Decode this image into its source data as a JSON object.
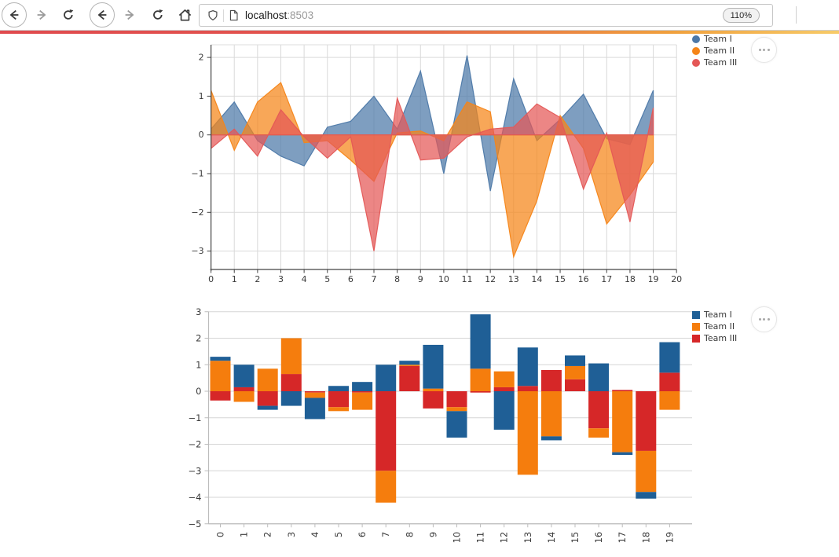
{
  "browser": {
    "back_label": "back",
    "forward_label": "forward",
    "reload_label": "reload",
    "home_label": "home",
    "url": "localhost:8503",
    "url_host": "localhost",
    "url_port": ":8503",
    "zoom_level": "110%"
  },
  "decoration_gradient": [
    "#e04a4e",
    "#e2544d",
    "#f0a03d",
    "#f7cb69"
  ],
  "chart_data": [
    {
      "type": "area",
      "title": "",
      "xlabel": "",
      "ylabel": "",
      "x": [
        0,
        1,
        2,
        3,
        4,
        5,
        6,
        7,
        8,
        9,
        10,
        11,
        12,
        13,
        14,
        15,
        16,
        17,
        18,
        19
      ],
      "series": [
        {
          "name": "Team I",
          "color": "#4c78a8",
          "values": [
            0.15,
            0.85,
            -0.15,
            -0.55,
            -0.8,
            0.2,
            0.35,
            1.0,
            0.15,
            1.65,
            -1.0,
            2.05,
            -1.45,
            1.45,
            -0.15,
            0.4,
            1.05,
            -0.1,
            -0.25,
            1.15
          ]
        },
        {
          "name": "Team II",
          "color": "#f58518",
          "values": [
            1.15,
            -0.4,
            0.85,
            1.35,
            -0.2,
            -0.15,
            -0.65,
            -1.2,
            0.05,
            0.1,
            -0.15,
            0.85,
            0.6,
            -3.15,
            -1.7,
            0.5,
            -0.35,
            -2.3,
            -1.55,
            -0.7
          ]
        },
        {
          "name": "Team III",
          "color": "#e45756",
          "values": [
            -0.35,
            0.15,
            -0.55,
            0.65,
            -0.05,
            -0.6,
            -0.05,
            -3.0,
            0.95,
            -0.65,
            -0.6,
            -0.05,
            0.15,
            0.2,
            0.8,
            0.45,
            -1.4,
            0.05,
            -2.25,
            0.7
          ]
        }
      ],
      "fill_opacity": 0.72,
      "x_ticks": [
        0,
        1,
        2,
        3,
        4,
        5,
        6,
        7,
        8,
        9,
        10,
        11,
        12,
        13,
        14,
        15,
        16,
        17,
        18,
        19,
        20
      ],
      "y_ticks": [
        2,
        1,
        0,
        -1,
        -2,
        -3
      ],
      "xlim": [
        0,
        20
      ],
      "ylim": [
        -3.45,
        2.33
      ],
      "grid": true,
      "legend_position": "top-right",
      "legend_marker": "circle"
    },
    {
      "type": "bar",
      "stacked": true,
      "stack_order": [
        "Team III",
        "Team II",
        "Team I"
      ],
      "title": "",
      "xlabel": "",
      "ylabel": "",
      "categories": [
        "0",
        "1",
        "2",
        "3",
        "4",
        "5",
        "6",
        "7",
        "8",
        "9",
        "10",
        "11",
        "12",
        "13",
        "14",
        "15",
        "16",
        "17",
        "18",
        "19"
      ],
      "series": [
        {
          "name": "Team I",
          "color": "#1f5f96",
          "values": [
            0.15,
            0.85,
            -0.15,
            -0.55,
            -0.8,
            0.2,
            0.35,
            1.0,
            0.15,
            1.65,
            -1.0,
            2.05,
            -1.45,
            1.45,
            -0.15,
            0.4,
            1.05,
            -0.1,
            -0.25,
            1.15
          ]
        },
        {
          "name": "Team II",
          "color": "#f57d0d",
          "values": [
            1.15,
            -0.4,
            0.85,
            1.35,
            -0.2,
            -0.15,
            -0.65,
            -1.2,
            0.05,
            0.1,
            -0.15,
            0.85,
            0.6,
            -3.15,
            -1.7,
            0.5,
            -0.35,
            -2.3,
            -1.55,
            -0.7
          ]
        },
        {
          "name": "Team III",
          "color": "#d62728",
          "values": [
            -0.35,
            0.15,
            -0.55,
            0.65,
            -0.05,
            -0.6,
            -0.05,
            -3.0,
            0.95,
            -0.65,
            -0.6,
            -0.05,
            0.15,
            0.2,
            0.8,
            0.45,
            -1.4,
            0.05,
            -2.25,
            0.7
          ]
        }
      ],
      "y_ticks": [
        3,
        2,
        1,
        0,
        -1,
        -2,
        -3,
        -4,
        -5
      ],
      "ylim": [
        -5,
        3
      ],
      "grid": true,
      "legend_position": "top-right",
      "legend_marker": "square",
      "x_tick_rotation": -90
    }
  ]
}
